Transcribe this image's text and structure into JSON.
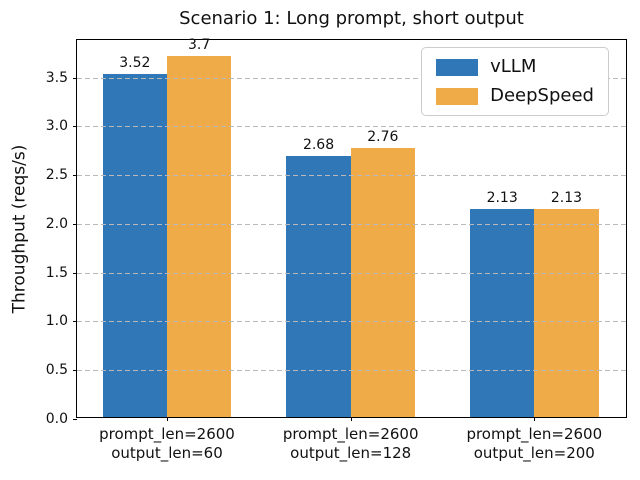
{
  "chart_data": {
    "type": "bar",
    "title": "Scenario 1: Long prompt, short output",
    "ylabel": "Throughput (reqs/s)",
    "xlabel": "",
    "categories": [
      "prompt_len=2600\noutput_len=60",
      "prompt_len=2600\noutput_len=128",
      "prompt_len=2600\noutput_len=200"
    ],
    "series": [
      {
        "name": "vLLM",
        "color": "#2f77b6",
        "values": [
          3.52,
          2.68,
          2.13
        ],
        "value_labels": [
          "3.52",
          "2.68",
          "2.13"
        ]
      },
      {
        "name": "DeepSpeed",
        "color": "#efab48",
        "values": [
          3.7,
          2.76,
          2.13
        ],
        "value_labels": [
          "3.7",
          "2.76",
          "2.13"
        ]
      }
    ],
    "ylim": [
      0,
      3.885
    ],
    "yticks": [
      0.0,
      0.5,
      1.0,
      1.5,
      2.0,
      2.5,
      3.0,
      3.5
    ],
    "ytick_labels": [
      "0.0",
      "0.5",
      "1.0",
      "1.5",
      "2.0",
      "2.5",
      "3.0",
      "3.5"
    ],
    "grid": "horizontal-dashed-over-bars",
    "grid_color": "#b9b9b9",
    "legend_position": "upper right",
    "bar_group_width_units": 0.7,
    "bar_width_units": 0.35
  }
}
